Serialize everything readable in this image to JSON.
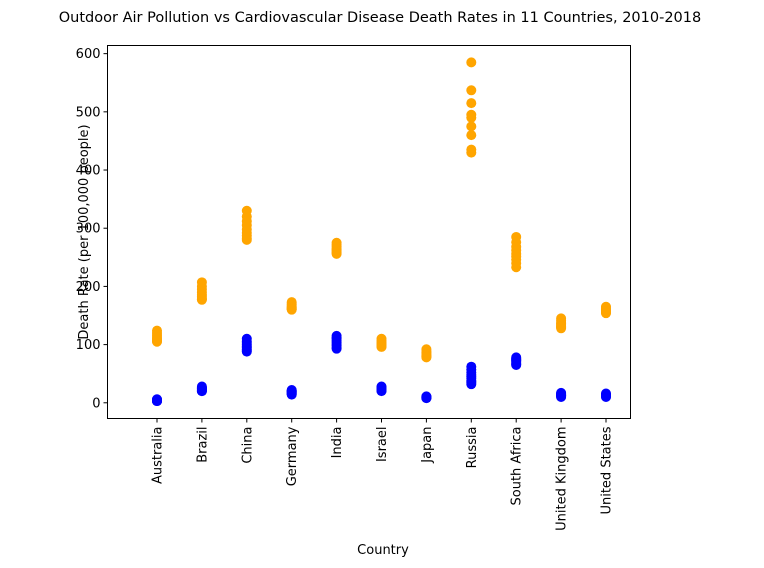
{
  "chart_data": {
    "type": "scatter",
    "title": "Outdoor Air Pollution vs Cardiovascular Disease Death Rates in 11 Countries, 2010-2018",
    "x_label": "Country",
    "y_label": "Death Rate (per 100,000 people)",
    "categories": [
      "Australia",
      "Brazil",
      "China",
      "Germany",
      "India",
      "Israel",
      "Japan",
      "Russia",
      "South Africa",
      "United Kingdom",
      "United States"
    ],
    "series": [
      {
        "color": "#0000ff",
        "values": [
          [
            6,
            5,
            5,
            4,
            4,
            4,
            3,
            3,
            3
          ],
          [
            28,
            26,
            25,
            24,
            23,
            22,
            21,
            20,
            20
          ],
          [
            110,
            106,
            103,
            100,
            97,
            95,
            92,
            90,
            88
          ],
          [
            22,
            21,
            20,
            19,
            18,
            17,
            16,
            15,
            14
          ],
          [
            115,
            112,
            110,
            107,
            104,
            101,
            98,
            95,
            93
          ],
          [
            28,
            27,
            26,
            25,
            24,
            23,
            22,
            21,
            20
          ],
          [
            11,
            10,
            10,
            10,
            9,
            9,
            9,
            8,
            8
          ],
          [
            62,
            57,
            52,
            48,
            45,
            42,
            38,
            35,
            32
          ],
          [
            78,
            76,
            75,
            73,
            72,
            70,
            68,
            66,
            65
          ],
          [
            17,
            16,
            15,
            14,
            13,
            12,
            12,
            11,
            10
          ],
          [
            16,
            15,
            14,
            13,
            13,
            12,
            12,
            11,
            10
          ]
        ]
      },
      {
        "color": "#ffa500",
        "values": [
          [
            124,
            120,
            116,
            113,
            110,
            108,
            107,
            106,
            105
          ],
          [
            207,
            200,
            195,
            190,
            186,
            183,
            180,
            178,
            177
          ],
          [
            330,
            320,
            312,
            305,
            298,
            292,
            287,
            283,
            280
          ],
          [
            173,
            170,
            168,
            166,
            164,
            163,
            162,
            161,
            160
          ],
          [
            275,
            272,
            269,
            266,
            264,
            262,
            260,
            258,
            256
          ],
          [
            110,
            107,
            104,
            102,
            100,
            99,
            98,
            97,
            96
          ],
          [
            92,
            89,
            87,
            85,
            83,
            81,
            80,
            79,
            78
          ],
          [
            585,
            537,
            515,
            495,
            490,
            475,
            460,
            435,
            430
          ],
          [
            285,
            276,
            268,
            262,
            256,
            251,
            246,
            240,
            233
          ],
          [
            145,
            141,
            138,
            136,
            134,
            132,
            131,
            130,
            128
          ],
          [
            165,
            163,
            161,
            159,
            158,
            157,
            156,
            155,
            154
          ]
        ]
      }
    ],
    "ylim": [
      -27,
      614
    ],
    "yticks": [
      0,
      100,
      200,
      300,
      400,
      500,
      600
    ]
  }
}
